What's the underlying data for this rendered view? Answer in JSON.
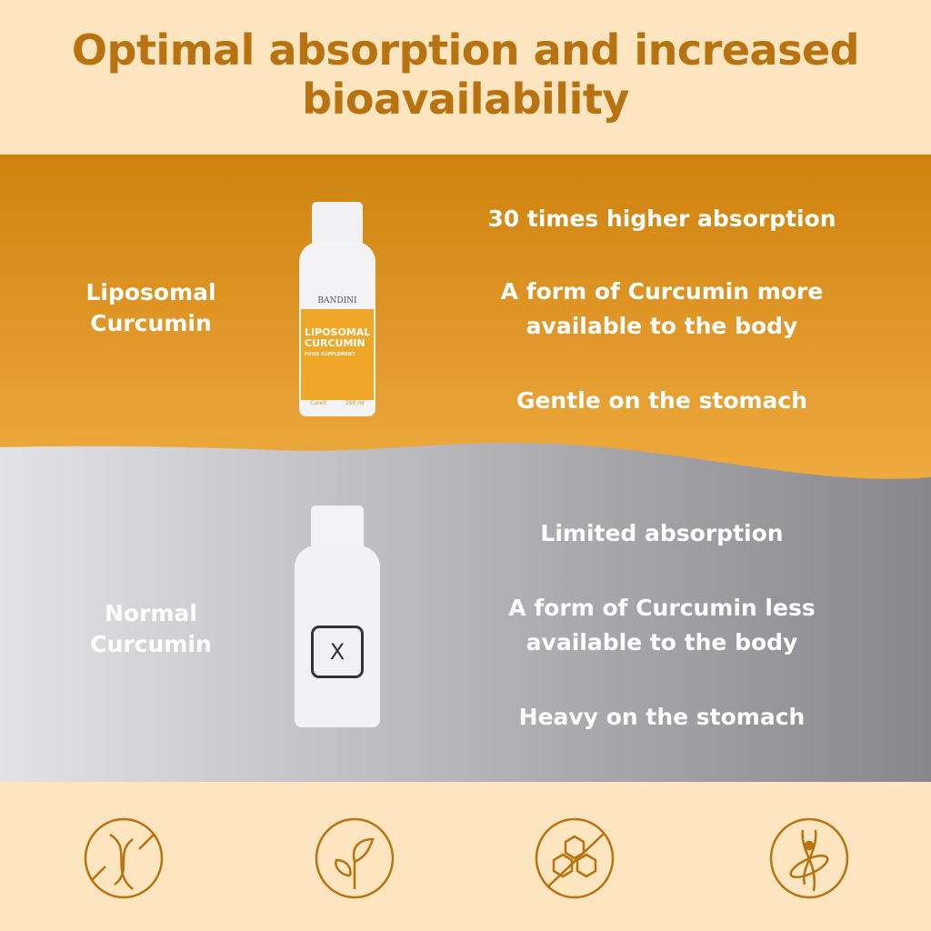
{
  "title": "Optimal absorption and increased bioavailability",
  "colors": {
    "background": "#fde5bf",
    "accent": "#b8720f",
    "orange_top": "#cf820e",
    "orange_bottom": "#eeaa3e",
    "gray_light": "#e3e2e5",
    "gray_dark": "#88878b"
  },
  "liposomal": {
    "label": "Liposomal Curcumin",
    "points": [
      "30 times higher absorption",
      "A form of Curcumin more available to the body",
      "Gentle on the stomach"
    ],
    "bottle": {
      "brand": "BANDINI",
      "name_line1": "LIPOSOMAL",
      "name_line2": "CURCUMIN",
      "subtitle": "FOOD SUPPLEMENT",
      "ingredient": "Cureit",
      "volume": "250 ml"
    }
  },
  "normal": {
    "label": "Normal Curcumin",
    "points": [
      "Limited absorption",
      "A form of Curcumin less available to the body",
      "Heavy on the stomach"
    ],
    "bottle_mark": "X"
  },
  "icons": [
    "gmo-free-icon",
    "plant-based-icon",
    "sugar-free-icon",
    "body-wellness-icon"
  ]
}
